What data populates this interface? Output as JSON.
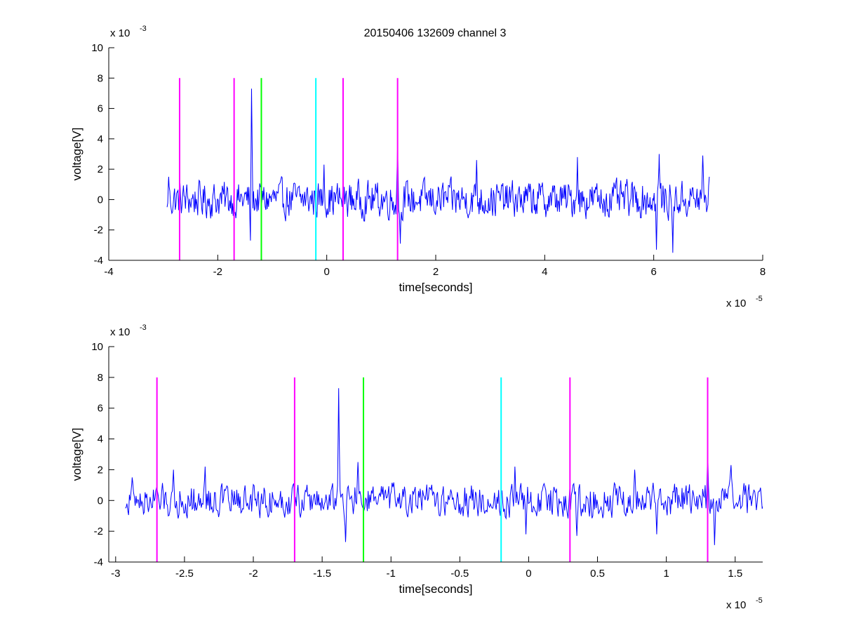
{
  "figure": {
    "title": "20150406 132609 channel 3"
  },
  "chart_data": [
    {
      "type": "line",
      "title": "20150406 132609 channel 3",
      "xlabel": "time[seconds]",
      "ylabel": "voltage[V]",
      "x_exponent_label": "x 10",
      "x_exponent": "-5",
      "y_exponent_label": "x 10",
      "y_exponent": "-3",
      "xlim": [
        -4,
        8
      ],
      "ylim": [
        -4,
        10
      ],
      "xticks": [
        -4,
        -2,
        0,
        2,
        4,
        6,
        8
      ],
      "xtick_labels": [
        "-4",
        "-2",
        "0",
        "2",
        "4",
        "6",
        "8"
      ],
      "yticks": [
        -4,
        -2,
        0,
        2,
        4,
        6,
        8,
        10
      ],
      "ytick_labels": [
        "-4",
        "-2",
        "0",
        "2",
        "4",
        "6",
        "8",
        "10"
      ],
      "grid": false,
      "series": [
        {
          "color": "#0000ff",
          "x_range": [
            -2.93,
            7.02
          ],
          "key_points": [
            {
              "x": -2.93,
              "y": -0.5
            },
            {
              "x": -2.9,
              "y": 1.5
            },
            {
              "x": -1.38,
              "y": 7.3
            },
            {
              "x": -1.4,
              "y": -2.7
            },
            {
              "x": -0.05,
              "y": 2.3
            },
            {
              "x": 1.3,
              "y": 3.6
            },
            {
              "x": 1.35,
              "y": -2.9
            },
            {
              "x": 2.75,
              "y": 2.6
            },
            {
              "x": 4.6,
              "y": 2.8
            },
            {
              "x": 6.1,
              "y": 3.0
            },
            {
              "x": 6.05,
              "y": -3.3
            },
            {
              "x": 6.35,
              "y": -3.5
            },
            {
              "x": 6.9,
              "y": 2.9
            },
            {
              "x": 7.02,
              "y": 1.5
            }
          ]
        }
      ],
      "markers": [
        {
          "x": -2.7,
          "y_range": [
            -4,
            8
          ],
          "color": "#ff00ff"
        },
        {
          "x": -1.7,
          "y_range": [
            -4,
            8
          ],
          "color": "#ff00ff"
        },
        {
          "x": -1.2,
          "y_range": [
            -4,
            8
          ],
          "color": "#00ff00"
        },
        {
          "x": -0.2,
          "y_range": [
            -4,
            8
          ],
          "color": "#00ffff"
        },
        {
          "x": 0.3,
          "y_range": [
            -4,
            8
          ],
          "color": "#ff00ff"
        },
        {
          "x": 1.3,
          "y_range": [
            -4,
            8
          ],
          "color": "#ff00ff"
        }
      ]
    },
    {
      "type": "line",
      "title": "",
      "xlabel": "time[seconds]",
      "ylabel": "voltage[V]",
      "x_exponent_label": "x 10",
      "x_exponent": "-5",
      "y_exponent_label": "x 10",
      "y_exponent": "-3",
      "xlim": [
        -3.05,
        1.7
      ],
      "ylim": [
        -4,
        10
      ],
      "xticks": [
        -3,
        -2.5,
        -2,
        -1.5,
        -1,
        -0.5,
        0,
        0.5,
        1,
        1.5
      ],
      "xtick_labels": [
        "-3",
        "-2.5",
        "-2",
        "-1.5",
        "-1",
        "-0.5",
        "0",
        "0.5",
        "1",
        "1.5"
      ],
      "yticks": [
        -4,
        -2,
        0,
        2,
        4,
        6,
        8,
        10
      ],
      "ytick_labels": [
        "-4",
        "-2",
        "0",
        "2",
        "4",
        "6",
        "8",
        "10"
      ],
      "grid": false,
      "series": [
        {
          "color": "#0000ff",
          "x_range": [
            -2.93,
            1.7
          ],
          "key_points": [
            {
              "x": -2.93,
              "y": -0.5
            },
            {
              "x": -2.88,
              "y": 1.5
            },
            {
              "x": -2.58,
              "y": 2.0
            },
            {
              "x": -2.35,
              "y": 2.2
            },
            {
              "x": -1.38,
              "y": 7.3
            },
            {
              "x": -1.33,
              "y": -2.7
            },
            {
              "x": -1.24,
              "y": 2.5
            },
            {
              "x": -0.1,
              "y": 2.2
            },
            {
              "x": -0.02,
              "y": -2.2
            },
            {
              "x": 0.35,
              "y": -2.3
            },
            {
              "x": 0.77,
              "y": 2.0
            },
            {
              "x": 0.93,
              "y": -2.2
            },
            {
              "x": 1.3,
              "y": 3.5
            },
            {
              "x": 1.35,
              "y": -2.9
            },
            {
              "x": 1.47,
              "y": 2.3
            },
            {
              "x": 1.7,
              "y": -0.4
            }
          ]
        }
      ],
      "markers": [
        {
          "x": -2.7,
          "y_range": [
            -4,
            8
          ],
          "color": "#ff00ff"
        },
        {
          "x": -1.7,
          "y_range": [
            -4,
            8
          ],
          "color": "#ff00ff"
        },
        {
          "x": -1.2,
          "y_range": [
            -4,
            8
          ],
          "color": "#00ff00"
        },
        {
          "x": -0.2,
          "y_range": [
            -4,
            8
          ],
          "color": "#00ffff"
        },
        {
          "x": 0.3,
          "y_range": [
            -4,
            8
          ],
          "color": "#ff00ff"
        },
        {
          "x": 1.3,
          "y_range": [
            -4,
            8
          ],
          "color": "#ff00ff"
        }
      ]
    }
  ]
}
